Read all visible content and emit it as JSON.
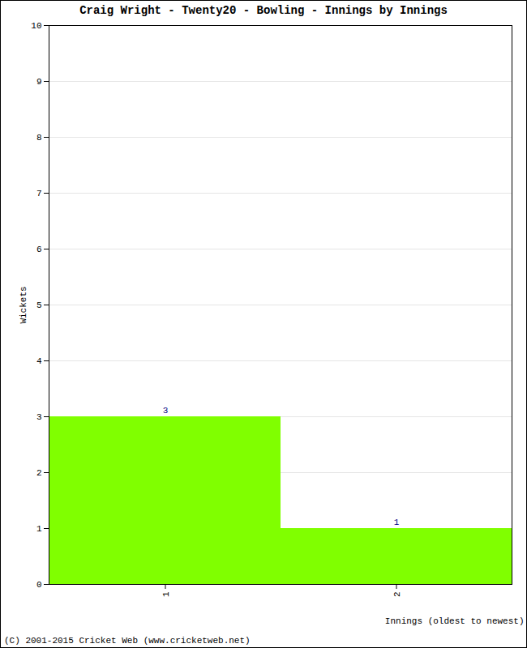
{
  "chart_data": {
    "type": "bar",
    "title": "Craig Wright - Twenty20 - Bowling - Innings by Innings",
    "x_label": "Innings (oldest to newest)",
    "y_label": "Wickets",
    "categories": [
      "1",
      "2"
    ],
    "values": [
      3,
      1
    ],
    "color": "#80ff00",
    "ylim": [
      0,
      10
    ],
    "yticks": [
      0,
      1,
      2,
      3,
      4,
      5,
      6,
      7,
      8,
      9,
      10
    ],
    "grid": true,
    "data_labels": true,
    "annotations": [
      "(C) 2001-2015 Cricket Web (www.cricketweb.net)"
    ]
  }
}
